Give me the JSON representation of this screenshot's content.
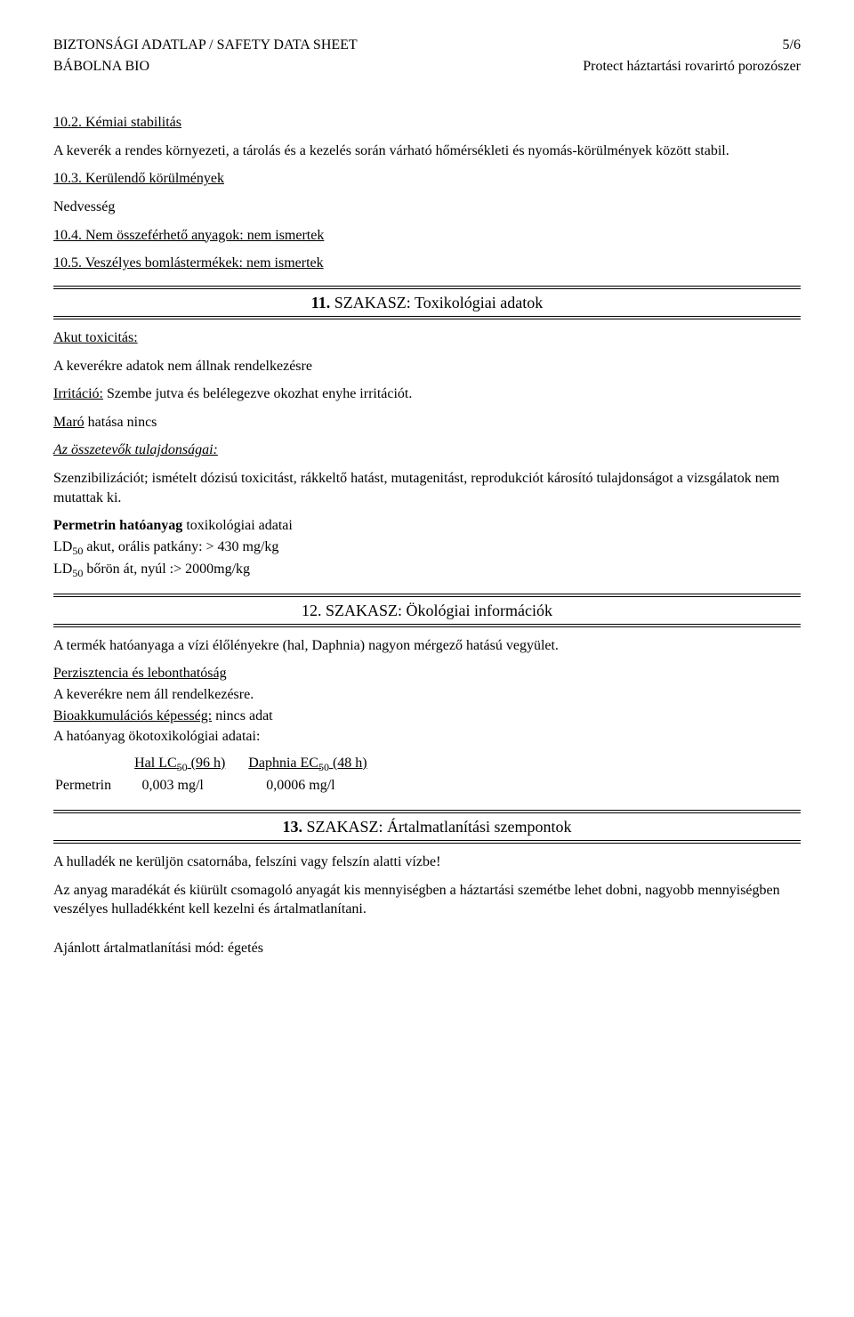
{
  "header": {
    "left1": "BIZTONSÁGI ADATLAP / SAFETY DATA SHEET",
    "right1": "5/6",
    "left2": "BÁBOLNA BIO",
    "right2": "Protect háztartási rovarirtó porozószer"
  },
  "s10_2": {
    "title": "10.2. Kémiai stabilitás",
    "text": "A keverék a rendes környezeti, a tárolás és a kezelés során várható hőmérsékleti és nyomás-körülmények között stabil."
  },
  "s10_3": {
    "title": "10.3. Kerülendő körülmények",
    "text": "Nedvesség"
  },
  "s10_4": {
    "title": "10.4. Nem összeférhető anyagok: nem ismertek"
  },
  "s10_5": {
    "title": "10.5. Veszélyes bomlástermékek: nem ismertek"
  },
  "section11": {
    "heading_num": "11.",
    "heading_text": " SZAKASZ: Toxikológiai adatok",
    "akut": "Akut toxicitás:",
    "akut_text": "A keverékre adatok nem állnak rendelkezésre",
    "irrit_label": "Irritáció:",
    "irrit_text": " Szembe jutva és belélegezve okozhat enyhe irritációt.",
    "maro_label": "Maró",
    "maro_text": " hatása nincs",
    "comp_title": "Az összetevők tulajdonságai:",
    "comp_text": "Szenzibilizációt; ismételt dózisú toxicitást, rákkeltő hatást, mutagenitást, reprodukciót károsító tulajdonságot a vizsgálatok nem mutattak ki.",
    "perm_title": "Permetrin hatóanyag",
    "perm_title_rest": " toxikológiai adatai",
    "ld1_pre": "LD",
    "ld1_post": " akut, orális patkány: > 430 mg/kg",
    "ld2_pre": "LD",
    "ld2_post": " bőrön át, nyúl :> 2000mg/kg",
    "sub50": "50"
  },
  "section12": {
    "heading": "12. SZAKASZ: Ökológiai információk",
    "p1": "A termék hatóanyaga a vízi élőlényekre (hal, Daphnia) nagyon mérgező hatású vegyület.",
    "persist_u": "Perzisztencia és lebonthatóság",
    "persist_text": "A keverékre nem áll rendelkezésre.",
    "bioacc_u": "Bioakkumulációs képesség:",
    "bioacc_text": " nincs adat",
    "eco_title": "A hatóanyag ökotoxikológiai adatai:",
    "col1_a": "Hal LC",
    "col1_b": " (96 h)",
    "col2_a": "Daphnia EC",
    "col2_b": " (48 h)",
    "row_name": "Permetrin",
    "row_v1": "0,003 mg/l",
    "row_v2": "0,0006 mg/l",
    "sub50": "50"
  },
  "section13": {
    "heading_num": "13.",
    "heading_text": " SZAKASZ: Ártalmatlanítási szempontok",
    "p1": "A hulladék ne kerüljön csatornába, felszíni vagy felszín alatti vízbe!",
    "p2": "Az anyag maradékát és kiürült csomagoló anyagát kis mennyiségben a háztartási szemétbe lehet dobni, nagyobb mennyiségben veszélyes hulladékként kell kezelni és ártalmatlanítani.",
    "p3": "Ajánlott ártalmatlanítási mód: égetés"
  }
}
